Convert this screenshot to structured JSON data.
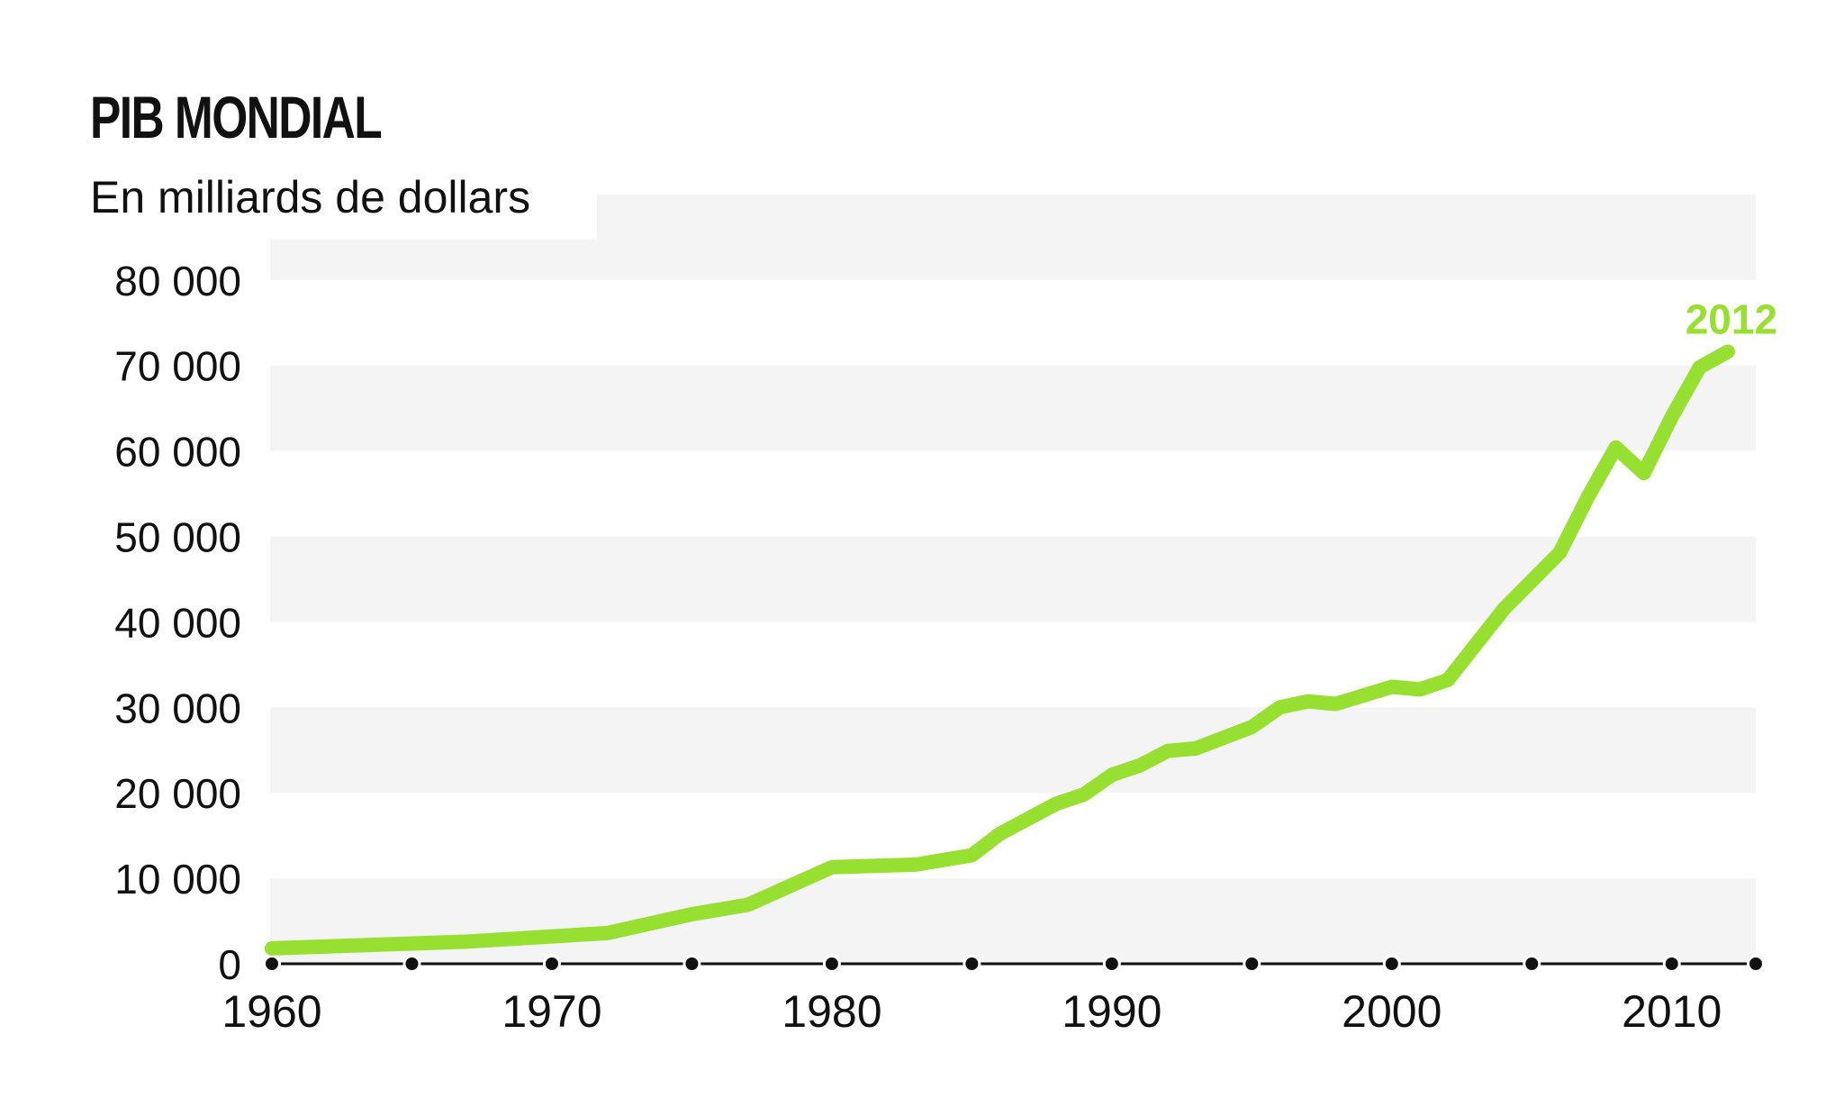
{
  "chart_data": {
    "type": "line",
    "title": "PIB MONDIAL",
    "subtitle": "En milliards de dollars",
    "xlabel": "",
    "ylabel": "",
    "xlim": [
      1960,
      2013
    ],
    "ylim": [
      0,
      90000
    ],
    "x_ticks": [
      1960,
      1965,
      1970,
      1975,
      1980,
      1985,
      1990,
      1995,
      2000,
      2005,
      2010,
      2013
    ],
    "x_tick_labels": [
      "1960",
      "1970",
      "1980",
      "1990",
      "2000",
      "2010"
    ],
    "y_tick_labels": [
      "0",
      "10 000",
      "20 000",
      "30 000",
      "40 000",
      "50 000",
      "60 000",
      "70 000",
      "80 000"
    ],
    "grid": "alternating horizontal bands",
    "line_color": "#97e032",
    "end_label": "2012",
    "series": [
      {
        "x": [
          1960,
          1967,
          1972,
          1975,
          1977,
          1980,
          1983,
          1985,
          1986,
          1988,
          1989,
          1990,
          1991,
          1992,
          1993,
          1995,
          1996,
          1997,
          1998,
          2000,
          2001,
          2002,
          2004,
          2006,
          2007,
          2008,
          2009,
          2010,
          2011,
          2012
        ],
        "y": [
          1800,
          2600,
          3600,
          5800,
          6900,
          11300,
          11600,
          12700,
          15200,
          18700,
          19800,
          22100,
          23200,
          24900,
          25200,
          27700,
          30000,
          30700,
          30400,
          32400,
          32100,
          33200,
          41500,
          48100,
          54600,
          60400,
          57400,
          64000,
          69800,
          71600
        ]
      }
    ]
  }
}
